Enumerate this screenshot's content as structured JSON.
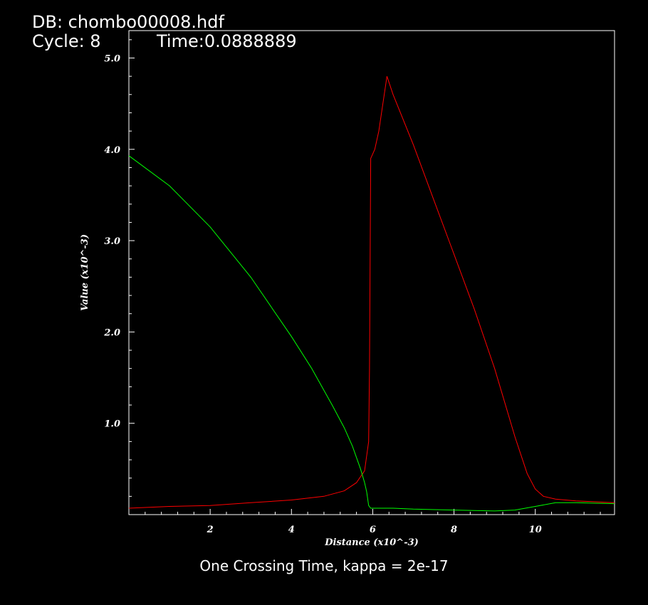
{
  "header": {
    "db_line": "DB: chombo00008.hdf",
    "cycle_label": "Cycle: 8",
    "time_label": "Time:0.0888889"
  },
  "caption": "One Crossing Time, kappa = 2e-17",
  "colors": {
    "background": "#000000",
    "axes": "#ffffff",
    "series_red": "#ff0000",
    "series_green": "#00ff00"
  },
  "chart_data": {
    "type": "line",
    "xlabel": "Distance (x10^-3)",
    "ylabel": "Value (x10^-3)",
    "xlim": [
      0,
      11.95
    ],
    "ylim": [
      0.0,
      5.3
    ],
    "xticks": [
      2,
      4,
      6,
      8,
      10
    ],
    "xtick_labels": [
      "2",
      "4",
      "6",
      "8",
      "10"
    ],
    "yticks": [
      1.0,
      2.0,
      3.0,
      4.0,
      5.0
    ],
    "ytick_labels": [
      "1.0",
      "2.0",
      "3.0",
      "4.0",
      "5.0"
    ],
    "grid": false,
    "series": [
      {
        "color": "#ff0000",
        "x": [
          0.0,
          1.0,
          2.0,
          3.0,
          4.0,
          4.8,
          5.3,
          5.6,
          5.8,
          5.9,
          5.92,
          5.95,
          5.98,
          6.05,
          6.15,
          6.25,
          6.35,
          6.5,
          7.0,
          7.5,
          8.0,
          8.5,
          9.0,
          9.5,
          9.8,
          10.0,
          10.2,
          10.5,
          11.0,
          11.95
        ],
        "y": [
          0.07,
          0.09,
          0.1,
          0.13,
          0.16,
          0.2,
          0.26,
          0.35,
          0.48,
          0.8,
          1.6,
          3.9,
          3.93,
          4.0,
          4.2,
          4.5,
          4.8,
          4.6,
          4.05,
          3.45,
          2.85,
          2.25,
          1.6,
          0.85,
          0.45,
          0.28,
          0.2,
          0.17,
          0.15,
          0.13
        ]
      },
      {
        "color": "#00ff00",
        "x": [
          0.0,
          1.0,
          2.0,
          3.0,
          4.0,
          4.5,
          5.0,
          5.3,
          5.5,
          5.7,
          5.8,
          5.85,
          5.9,
          5.95,
          6.5,
          7.0,
          8.0,
          9.0,
          9.5,
          10.0,
          10.5,
          11.0,
          11.95
        ],
        "y": [
          3.93,
          3.6,
          3.15,
          2.6,
          1.95,
          1.6,
          1.2,
          0.95,
          0.75,
          0.5,
          0.35,
          0.25,
          0.1,
          0.07,
          0.07,
          0.06,
          0.05,
          0.04,
          0.05,
          0.09,
          0.13,
          0.13,
          0.12
        ]
      }
    ]
  }
}
